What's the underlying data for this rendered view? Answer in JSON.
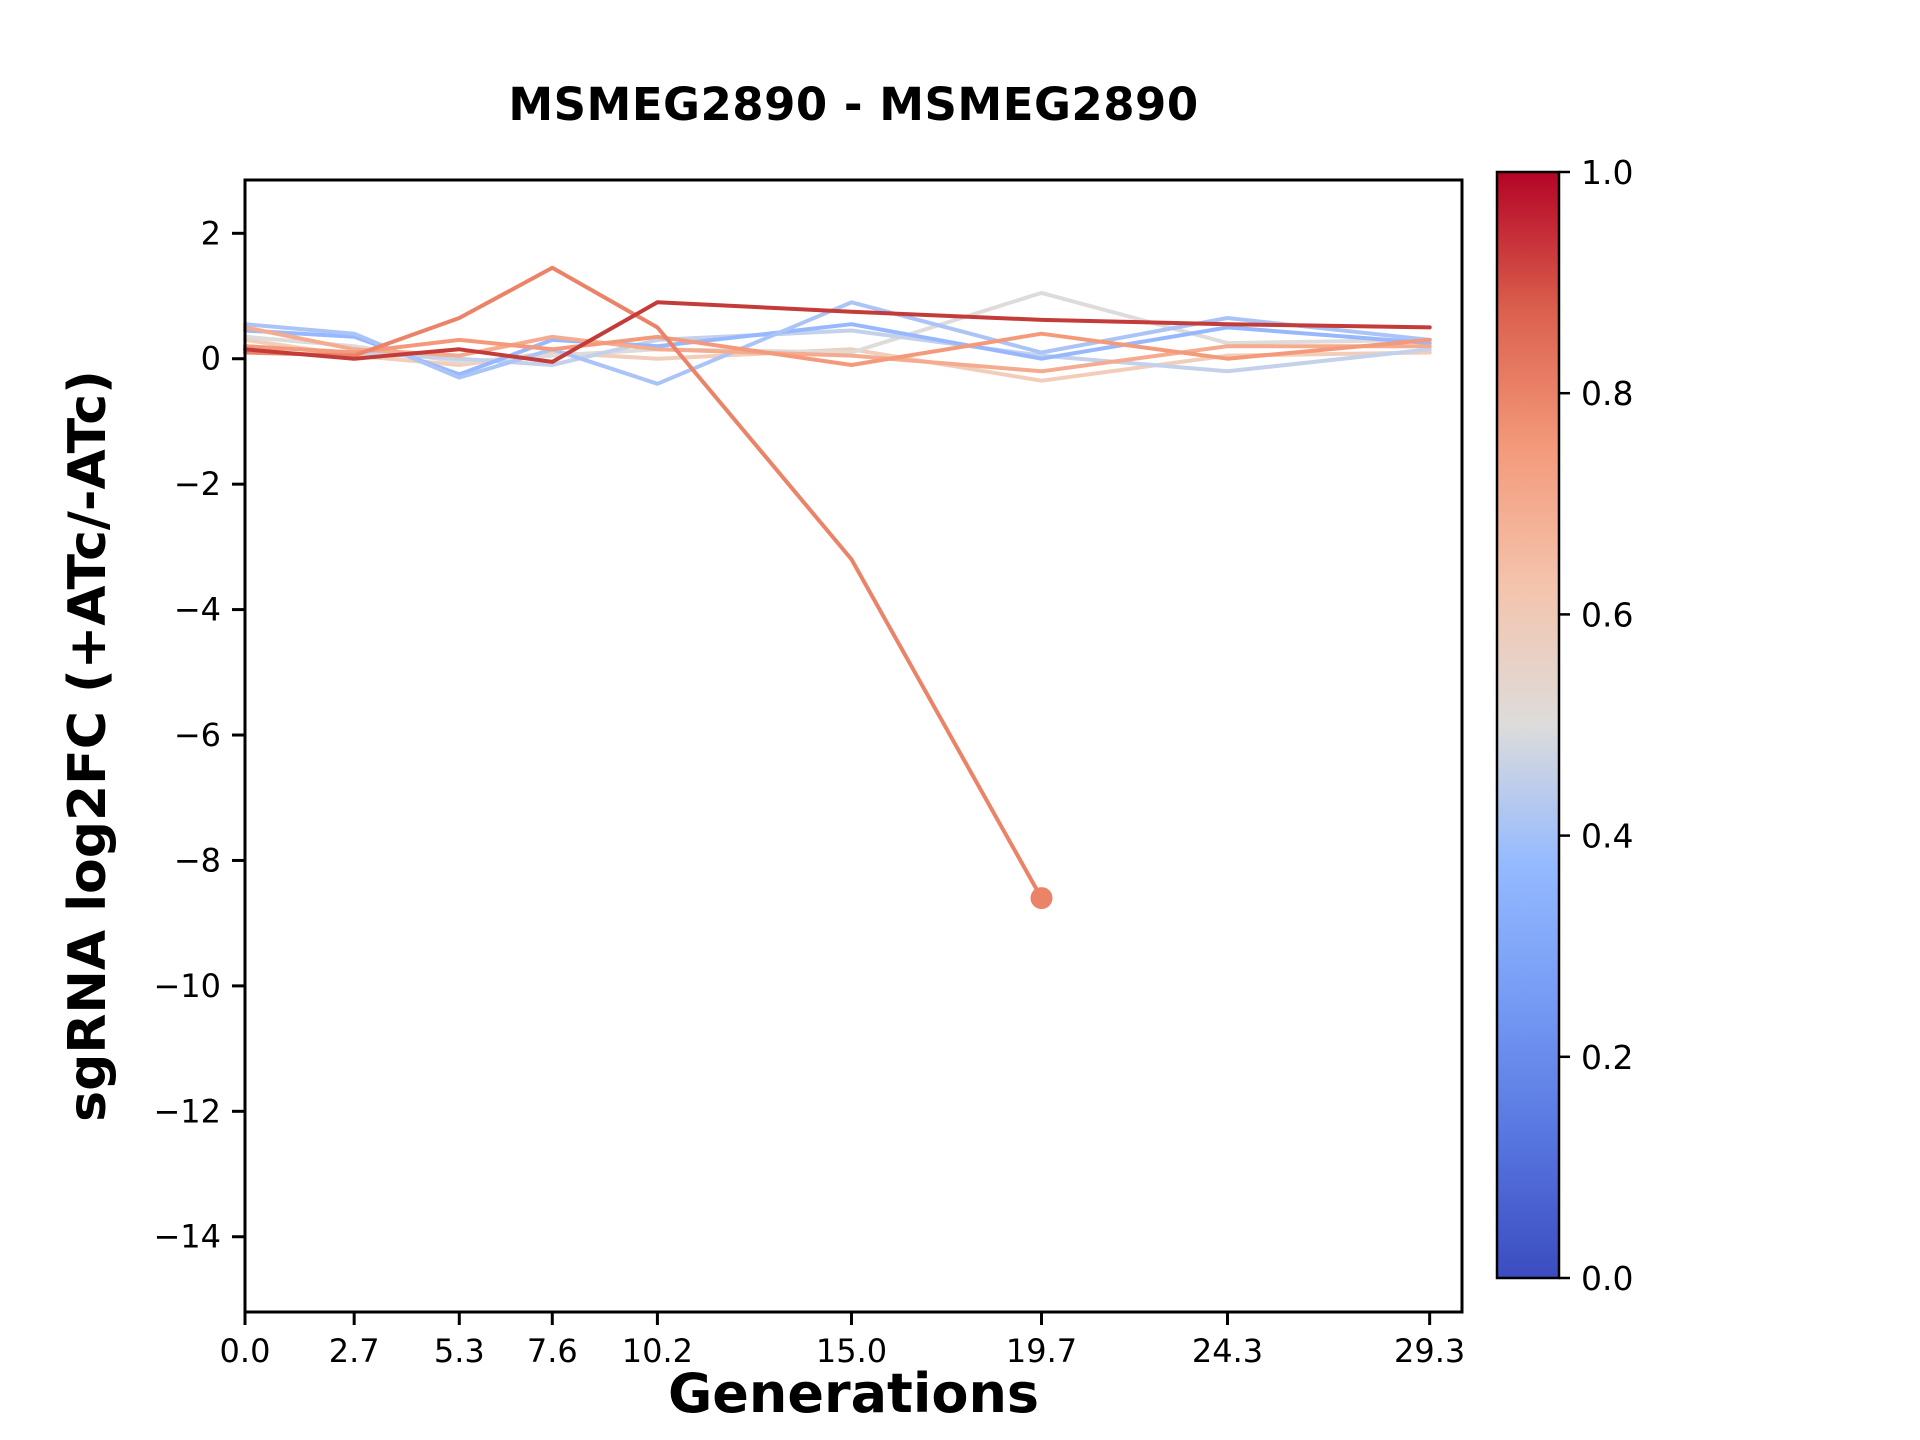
{
  "chart_data": {
    "type": "line",
    "title": "MSMEG2890 - MSMEG2890",
    "xlabel": "Generations",
    "ylabel": "sgRNA log2FC (+ATc/-ATc)",
    "x": [
      0.0,
      2.7,
      5.3,
      7.6,
      10.2,
      15.0,
      19.7,
      24.3,
      29.3
    ],
    "xlim": [
      0,
      30.1
    ],
    "ylim": [
      -15.2,
      2.85
    ],
    "grid": false,
    "x_ticks": [
      {
        "value": 0.0,
        "label": "0.0"
      },
      {
        "value": 2.7,
        "label": "2.7"
      },
      {
        "value": 5.3,
        "label": "5.3"
      },
      {
        "value": 7.6,
        "label": "7.6"
      },
      {
        "value": 10.2,
        "label": "10.2"
      },
      {
        "value": 15.0,
        "label": "15.0"
      },
      {
        "value": 19.7,
        "label": "19.7"
      },
      {
        "value": 24.3,
        "label": "24.3"
      },
      {
        "value": 29.3,
        "label": "29.3"
      }
    ],
    "y_ticks": [
      {
        "value": 2,
        "label": "2"
      },
      {
        "value": 0,
        "label": "0"
      },
      {
        "value": -2,
        "label": "−2"
      },
      {
        "value": -4,
        "label": "−4"
      },
      {
        "value": -6,
        "label": "−6"
      },
      {
        "value": -8,
        "label": "−8"
      },
      {
        "value": -10,
        "label": "−10"
      },
      {
        "value": -12,
        "label": "−12"
      },
      {
        "value": -14,
        "label": "−14"
      }
    ],
    "series": [
      {
        "name": "line-1",
        "colormap_value": 0.6,
        "color": "#F2CEBA",
        "values": [
          0.3,
          0.05,
          -0.1,
          0.1,
          0.0,
          0.15,
          -0.35,
          0.05,
          0.1
        ]
      },
      {
        "name": "line-2",
        "colormap_value": 0.5,
        "color": "#DDDCDB",
        "values": [
          0.35,
          0.2,
          -0.05,
          0.05,
          0.15,
          0.1,
          1.05,
          0.25,
          0.3
        ]
      },
      {
        "name": "line-3",
        "colormap_value": 0.45,
        "color": "#C4D1EB",
        "values": [
          0.2,
          0.1,
          0.0,
          -0.1,
          0.3,
          0.45,
          0.05,
          -0.2,
          0.15
        ]
      },
      {
        "name": "line-4",
        "colormap_value": 0.35,
        "color": "#97B8FE",
        "values": [
          0.45,
          0.35,
          -0.25,
          0.3,
          0.2,
          0.55,
          0.0,
          0.5,
          0.25
        ]
      },
      {
        "name": "line-5",
        "colormap_value": 0.4,
        "color": "#ABC4F8",
        "values": [
          0.55,
          0.4,
          -0.3,
          0.15,
          -0.4,
          0.9,
          0.1,
          0.65,
          0.3
        ]
      },
      {
        "name": "line-6",
        "colormap_value": 0.7,
        "color": "#F4AB8F",
        "values": [
          0.5,
          0.15,
          0.05,
          0.35,
          0.15,
          0.05,
          -0.2,
          0.2,
          0.2
        ]
      },
      {
        "name": "line-7",
        "colormap_value": 0.75,
        "color": "#F49A7B",
        "values": [
          0.2,
          0.1,
          0.3,
          0.15,
          0.35,
          -0.1,
          0.4,
          0.0,
          0.3
        ]
      },
      {
        "name": "line-8",
        "colormap_value": 0.8,
        "color": "#EB8369",
        "values": [
          0.1,
          0.05,
          0.65,
          1.45,
          0.5,
          -3.2,
          -8.6,
          null,
          null
        ],
        "marker_end": true
      },
      {
        "name": "line-9",
        "colormap_value": 0.93,
        "color": "#C43C39",
        "values": [
          0.15,
          0.0,
          0.15,
          -0.05,
          0.9,
          0.75,
          0.62,
          0.55,
          0.5
        ]
      }
    ],
    "colorbar": {
      "colormap": "coolwarm",
      "min": 0.0,
      "max": 1.0,
      "ticks": [
        {
          "value": 0.0,
          "label": "0.0"
        },
        {
          "value": 0.2,
          "label": "0.2"
        },
        {
          "value": 0.4,
          "label": "0.4"
        },
        {
          "value": 0.6,
          "label": "0.6"
        },
        {
          "value": 0.8,
          "label": "0.8"
        },
        {
          "value": 1.0,
          "label": "1.0"
        }
      ],
      "gradient_stops": [
        {
          "offset": 0.0,
          "color": "#3B4CC0"
        },
        {
          "offset": 0.125,
          "color": "#5775DF"
        },
        {
          "offset": 0.25,
          "color": "#759BF5"
        },
        {
          "offset": 0.375,
          "color": "#95BAFF"
        },
        {
          "offset": 0.5,
          "color": "#DDDCDB"
        },
        {
          "offset": 0.625,
          "color": "#F4C4AD"
        },
        {
          "offset": 0.75,
          "color": "#F49A7B"
        },
        {
          "offset": 0.875,
          "color": "#DB604D"
        },
        {
          "offset": 1.0,
          "color": "#B40426"
        }
      ]
    }
  }
}
